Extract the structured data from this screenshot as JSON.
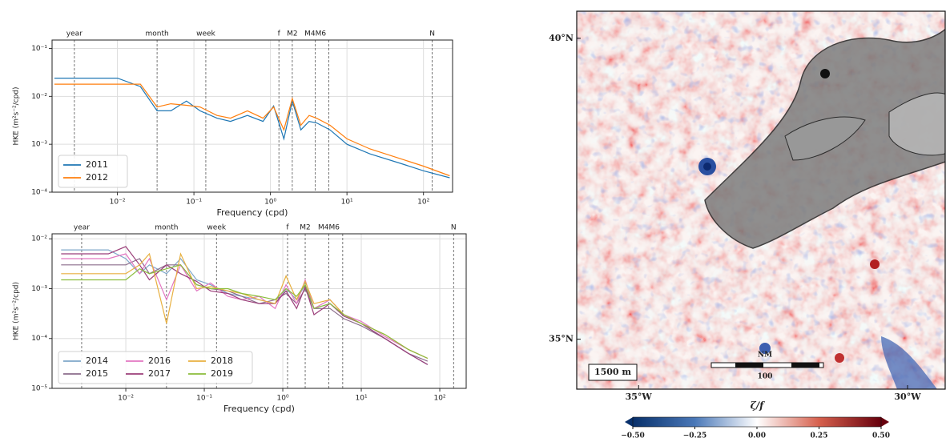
{
  "chart_data": [
    {
      "type": "line",
      "xlabel": "Frequency (cpd)",
      "ylabel": "HKE (m²s⁻²/cpd)",
      "log_x": true,
      "log_y": true,
      "grid": true,
      "legend": "lower left",
      "xlim": [
        0.0014,
        240
      ],
      "ylim": [
        0.0001,
        0.15
      ],
      "xticks": [
        {
          "value": 0.01,
          "label": "10⁻²"
        },
        {
          "value": 0.1,
          "label": "10⁻¹"
        },
        {
          "value": 1,
          "label": "10⁰"
        },
        {
          "value": 10,
          "label": "10¹"
        },
        {
          "value": 100,
          "label": "10²"
        }
      ],
      "yticks": [
        {
          "value": 0.0001,
          "label": "10⁻⁴"
        },
        {
          "value": 0.001,
          "label": "10⁻³"
        },
        {
          "value": 0.01,
          "label": "10⁻²"
        },
        {
          "value": 0.1,
          "label": "10⁻¹"
        }
      ],
      "vlines": [
        {
          "label": "year",
          "x": 0.00274
        },
        {
          "label": "month",
          "x": 0.033
        },
        {
          "label": "week",
          "x": 0.143
        },
        {
          "label": "f",
          "x": 1.29
        },
        {
          "label": "M2",
          "x": 1.93
        },
        {
          "label": "M4M6",
          "x": 3.86
        },
        {
          "label": null,
          "x": 5.8
        },
        {
          "label": "N",
          "x": 130
        }
      ],
      "x": [
        0.0015,
        0.003,
        0.006,
        0.01,
        0.02,
        0.033,
        0.05,
        0.08,
        0.12,
        0.2,
        0.3,
        0.5,
        0.8,
        1.1,
        1.5,
        1.93,
        2.5,
        3.2,
        4,
        6,
        10,
        20,
        50,
        100,
        220
      ],
      "series": [
        {
          "name": "2011",
          "color": "#1f77b4",
          "values": [
            0.024,
            0.024,
            0.024,
            0.024,
            0.016,
            0.005,
            0.005,
            0.008,
            0.005,
            0.0035,
            0.003,
            0.004,
            0.003,
            0.0063,
            0.0013,
            0.008,
            0.002,
            0.003,
            0.0028,
            0.002,
            0.001,
            0.00063,
            0.0004,
            0.00028,
            0.0002
          ]
        },
        {
          "name": "2012",
          "color": "#ff7f0e",
          "values": [
            0.018,
            0.018,
            0.018,
            0.018,
            0.018,
            0.006,
            0.007,
            0.0065,
            0.006,
            0.004,
            0.0035,
            0.005,
            0.0035,
            0.006,
            0.002,
            0.009,
            0.0025,
            0.004,
            0.0035,
            0.0025,
            0.0013,
            0.0008,
            0.0005,
            0.00035,
            0.00022
          ]
        }
      ]
    },
    {
      "type": "line",
      "xlabel": "Frequency (cpd)",
      "ylabel": "HKE (m²s⁻²/cpd)",
      "log_x": true,
      "log_y": true,
      "grid": true,
      "legend": "lower left",
      "legend_ncol": 3,
      "xlim": [
        0.00115,
        217
      ],
      "ylim": [
        1e-05,
        0.0126
      ],
      "xticks": [
        {
          "value": 0.01,
          "label": "10⁻²"
        },
        {
          "value": 0.1,
          "label": "10⁻¹"
        },
        {
          "value": 1,
          "label": "10⁰"
        },
        {
          "value": 10,
          "label": "10¹"
        },
        {
          "value": 100,
          "label": "10²"
        }
      ],
      "yticks": [
        {
          "value": 1e-05,
          "label": "10⁻⁵"
        },
        {
          "value": 0.0001,
          "label": "10⁻⁴"
        },
        {
          "value": 0.001,
          "label": "10⁻³"
        },
        {
          "value": 0.01,
          "label": "10⁻²"
        }
      ],
      "vlines": [
        {
          "label": "year",
          "x": 0.00274
        },
        {
          "label": "month",
          "x": 0.033
        },
        {
          "label": "week",
          "x": 0.143
        },
        {
          "label": "f",
          "x": 1.15
        },
        {
          "label": "M2",
          "x": 1.93
        },
        {
          "label": "M4M6",
          "x": 3.86
        },
        {
          "label": null,
          "x": 5.8
        },
        {
          "label": "N",
          "x": 150
        }
      ],
      "x": [
        0.0015,
        0.003,
        0.006,
        0.01,
        0.015,
        0.02,
        0.033,
        0.05,
        0.08,
        0.12,
        0.2,
        0.3,
        0.5,
        0.8,
        1.1,
        1.5,
        1.93,
        2.5,
        4,
        6,
        10,
        20,
        40,
        70
      ],
      "series": [
        {
          "name": "2014",
          "color": "#7fa7c9",
          "values": [
            0.006,
            0.006,
            0.006,
            0.004,
            0.002,
            0.003,
            0.002,
            0.004,
            0.0015,
            0.0012,
            0.0008,
            0.0007,
            0.0006,
            0.0005,
            0.001,
            0.0006,
            0.0012,
            0.0004,
            0.0005,
            0.0003,
            0.0002,
            0.0001,
            5e-05,
            3e-05
          ]
        },
        {
          "name": "2015",
          "color": "#8c6d8c",
          "values": [
            0.003,
            0.003,
            0.003,
            0.003,
            0.004,
            0.002,
            0.003,
            0.003,
            0.0012,
            0.001,
            0.0009,
            0.0007,
            0.0005,
            0.0006,
            0.0008,
            0.0005,
            0.001,
            0.0004,
            0.0004,
            0.00025,
            0.00018,
            0.0001,
            5e-05,
            3.5e-05
          ]
        },
        {
          "name": "2016",
          "color": "#e377c2",
          "values": [
            0.004,
            0.004,
            0.004,
            0.005,
            0.002,
            0.004,
            0.0006,
            0.003,
            0.0009,
            0.0013,
            0.0007,
            0.0006,
            0.0007,
            0.0004,
            0.0012,
            0.0005,
            0.0015,
            0.0004,
            0.0006,
            0.0003,
            0.00022,
            0.00011,
            6e-05,
            4e-05
          ]
        },
        {
          "name": "2017",
          "color": "#9b3f7a",
          "values": [
            0.005,
            0.005,
            0.005,
            0.007,
            0.003,
            0.0015,
            0.003,
            0.002,
            0.0014,
            0.0009,
            0.0008,
            0.0006,
            0.0005,
            0.0005,
            0.0009,
            0.0004,
            0.0011,
            0.0003,
            0.0005,
            0.00028,
            0.0002,
            0.0001,
            5e-05,
            3e-05
          ]
        },
        {
          "name": "2018",
          "color": "#e8b040",
          "values": [
            0.002,
            0.002,
            0.002,
            0.002,
            0.003,
            0.005,
            0.0002,
            0.005,
            0.001,
            0.0011,
            0.0009,
            0.0008,
            0.0006,
            0.0005,
            0.0018,
            0.0006,
            0.0014,
            0.0005,
            0.0006,
            0.0003,
            0.0002,
            0.00012,
            6e-05,
            4e-05
          ]
        },
        {
          "name": "2019",
          "color": "#8bbd3c",
          "values": [
            0.0015,
            0.0015,
            0.0015,
            0.0015,
            0.0025,
            0.002,
            0.0025,
            0.003,
            0.0012,
            0.001,
            0.001,
            0.0008,
            0.0007,
            0.0006,
            0.001,
            0.0007,
            0.0012,
            0.0004,
            0.0005,
            0.0003,
            0.0002,
            0.00012,
            6e-05,
            4e-05
          ]
        }
      ]
    },
    {
      "type": "map",
      "xlim": [
        -36.15,
        -29.3
      ],
      "ylim": [
        34.17,
        40.45
      ],
      "xticks": [
        {
          "value": -35,
          "label": "35°W"
        },
        {
          "value": -30,
          "label": "30°W"
        }
      ],
      "yticks": [
        {
          "value": 40,
          "label": "40°N"
        },
        {
          "value": 35,
          "label": "35°N"
        }
      ],
      "scale_label": "1500 m",
      "scalebar_unit": "NM",
      "scalebar_label": "100",
      "colorbar_label": "ζ/f",
      "clim": [
        -0.5,
        0.5
      ],
      "cticks": [
        {
          "value": -0.5,
          "label": "−0.50"
        },
        {
          "value": -0.25,
          "label": "−0.25"
        },
        {
          "value": 0,
          "label": "0.00"
        },
        {
          "value": 0.25,
          "label": "0.25"
        },
        {
          "value": 0.5,
          "label": "0.50"
        }
      ]
    }
  ]
}
